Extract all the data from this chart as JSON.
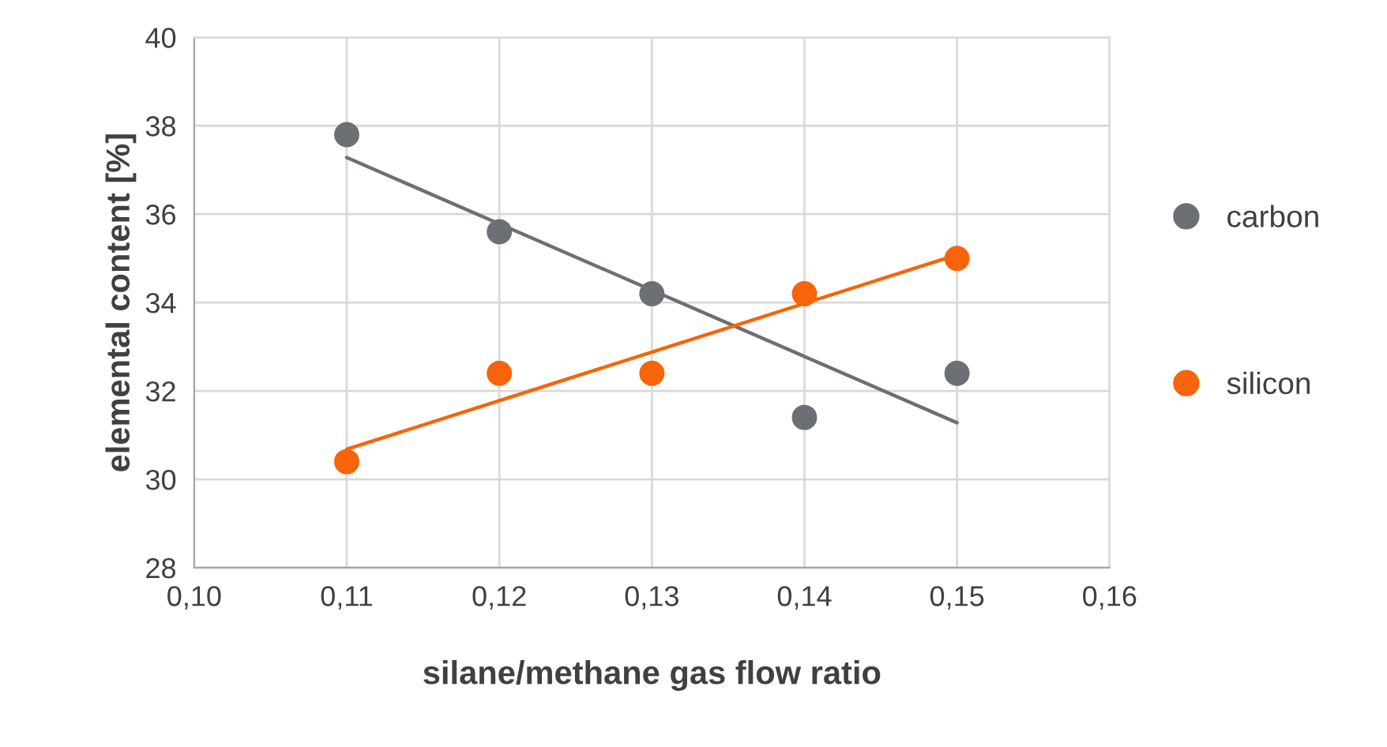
{
  "chart_data": {
    "type": "scatter",
    "xlabel": "silane/methane gas flow ratio",
    "ylabel": "elemental content [%]",
    "x": [
      0.11,
      0.12,
      0.13,
      0.14,
      0.15
    ],
    "series": [
      {
        "name": "carbon",
        "color": "#6c6f73",
        "marker": "circle",
        "values": [
          37.8,
          35.6,
          34.2,
          31.4,
          32.4
        ]
      },
      {
        "name": "silicon",
        "color": "#f86409",
        "marker": "circle",
        "values": [
          30.4,
          32.4,
          32.4,
          34.2,
          35.0
        ]
      },
      {
        "type": "line",
        "color": "#6c6f73",
        "marker": "none",
        "line_style": "solid",
        "values": [
          37.28,
          35.78,
          34.28,
          32.78,
          31.28
        ]
      },
      {
        "type": "line",
        "color": "#f86409",
        "marker": "none",
        "line_style": "solid",
        "values": [
          30.68,
          31.78,
          32.88,
          33.98,
          35.08
        ]
      }
    ],
    "xlim": [
      0.1,
      0.16
    ],
    "xticks": [
      {
        "value": 0.1,
        "label": "0,10"
      },
      {
        "value": 0.11,
        "label": "0,11"
      },
      {
        "value": 0.12,
        "label": "0,12"
      },
      {
        "value": 0.13,
        "label": "0,13"
      },
      {
        "value": 0.14,
        "label": "0,14"
      },
      {
        "value": 0.15,
        "label": "0,15"
      },
      {
        "value": 0.16,
        "label": "0,16"
      }
    ],
    "ylim": [
      28,
      40
    ],
    "yticks": [
      28,
      30,
      32,
      34,
      36,
      38,
      40
    ],
    "grid": true,
    "legend": "right"
  }
}
